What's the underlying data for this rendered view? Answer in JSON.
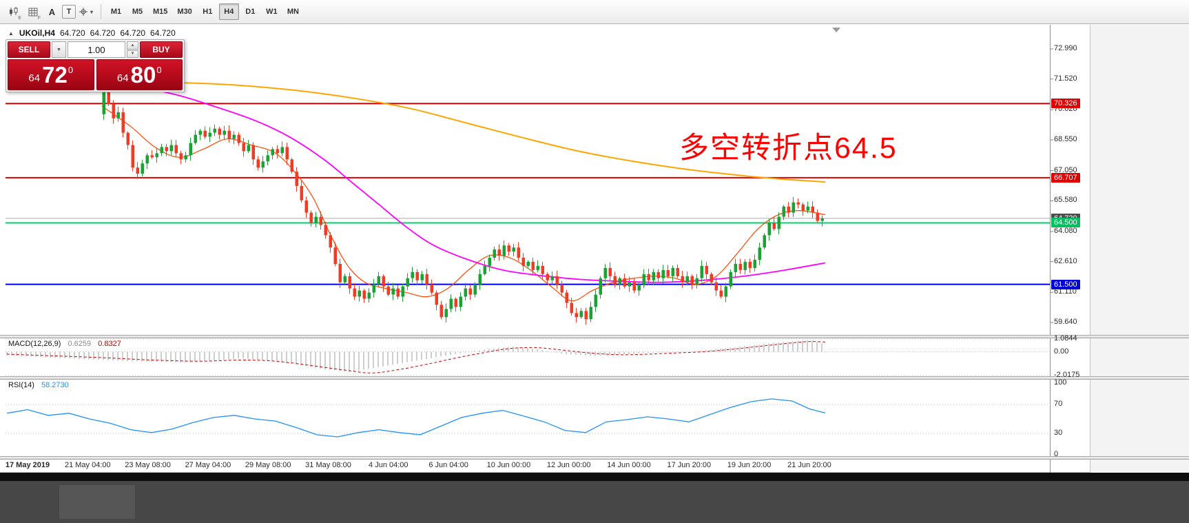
{
  "icons": {
    "caret_down": "▼",
    "caret_up": "▲",
    "caret_down_small": "▾",
    "collapse": "▲"
  },
  "toolbar": {
    "tools": [
      {
        "name": "chart-edit",
        "sub": "E"
      },
      {
        "name": "chart-grid",
        "sub": "F"
      },
      {
        "name": "text-label",
        "label": "A"
      },
      {
        "name": "text-box",
        "label": "T"
      },
      {
        "name": "crosshair",
        "sub": ""
      }
    ],
    "timeframes": [
      {
        "label": "M1"
      },
      {
        "label": "M5"
      },
      {
        "label": "M15"
      },
      {
        "label": "M30"
      },
      {
        "label": "H1"
      },
      {
        "label": "H4",
        "active": true
      },
      {
        "label": "D1"
      },
      {
        "label": "W1"
      },
      {
        "label": "MN"
      }
    ]
  },
  "chart": {
    "symbol_period": "UKOil,H4",
    "quote_open": "64.720",
    "quote_high": "64.720",
    "quote_low": "64.720",
    "quote_close": "64.720",
    "trade_panel": {
      "sell_label": "SELL",
      "buy_label": "BUY",
      "volume": "1.00",
      "sell_price_small": "64",
      "sell_price_big": "72",
      "sell_price_sup": "0",
      "buy_price_small": "64",
      "buy_price_big": "80",
      "buy_price_sup": "0"
    },
    "annotation": {
      "text": "多空转折点64.5",
      "color": "#ff0000"
    },
    "price_axis_labels": [
      "72.990",
      "71.520",
      "70.020",
      "68.550",
      "67.050",
      "65.580",
      "64.080",
      "62.610",
      "61.110",
      "59.640"
    ],
    "time_axis_labels": [
      "17 May 2019",
      "21 May 04:00",
      "23 May 08:00",
      "27 May 04:00",
      "29 May 08:00",
      "31 May 08:00",
      "4 Jun 04:00",
      "6 Jun 04:00",
      "10 Jun 00:00",
      "12 Jun 00:00",
      "14 Jun 00:00",
      "17 Jun 20:00",
      "19 Jun 20:00",
      "21 Jun 20:00"
    ],
    "hlines": [
      {
        "price": 70.326,
        "label": "70.326",
        "color": "#e00000",
        "badge": "#e00000",
        "width": 2
      },
      {
        "price": 66.707,
        "label": "66.707",
        "color": "#e00000",
        "badge": "#e00000",
        "width": 2
      },
      {
        "price": 64.72,
        "label": "64.720",
        "color": "#a6a6a6",
        "badge": "#4d4d4d",
        "width": 1
      },
      {
        "price": 64.5,
        "label": "64.500",
        "color": "#00d26a",
        "badge": "#00bf5e",
        "width": 2
      },
      {
        "price": 61.5,
        "label": "61.500",
        "color": "#0000e8",
        "badge": "#0000d8",
        "width": 2
      }
    ]
  },
  "macd": {
    "title": "MACD(12,26,9)",
    "value_main": "0.6259",
    "value_signal": "0.8327",
    "scale_labels": [
      "1.0844",
      "0.00",
      "-2.0175"
    ]
  },
  "rsi": {
    "title": "RSI(14)",
    "value": "58.2730",
    "scale_labels": [
      "100",
      "70",
      "30",
      "0"
    ]
  },
  "chart_data": [
    {
      "type": "candlestick",
      "title": "UKOil,H4",
      "ylim": [
        59.64,
        72.99
      ],
      "up_color": "#1aa333",
      "down_color": "#f23b23",
      "first_open": 69.8,
      "closes": [
        71.2,
        70.3,
        69.6,
        69.9,
        68.9,
        68.3,
        67.2,
        66.9,
        67.4,
        67.8,
        67.7,
        67.9,
        68.2,
        68.0,
        68.3,
        67.9,
        67.6,
        67.8,
        68.4,
        68.8,
        69.0,
        68.7,
        68.9,
        69.1,
        68.8,
        69.0,
        68.6,
        68.8,
        68.4,
        68.0,
        68.3,
        67.6,
        67.2,
        67.5,
        67.8,
        68.1,
        67.9,
        68.2,
        67.6,
        67.0,
        66.3,
        65.6,
        65.0,
        64.5,
        64.8,
        64.4,
        63.9,
        63.3,
        62.5,
        61.6,
        61.9,
        61.3,
        60.9,
        61.2,
        60.8,
        61.1,
        61.5,
        61.9,
        61.4,
        61.0,
        61.3,
        60.9,
        61.4,
        61.8,
        62.1,
        61.7,
        62.0,
        61.5,
        61.1,
        60.5,
        59.9,
        60.3,
        60.8,
        60.4,
        60.9,
        61.3,
        61.0,
        61.5,
        62.0,
        62.4,
        62.8,
        63.2,
        62.9,
        63.4,
        63.1,
        63.3,
        62.8,
        62.4,
        62.6,
        62.2,
        62.4,
        62.0,
        61.7,
        61.9,
        61.5,
        61.1,
        60.6,
        60.1,
        59.9,
        60.2,
        59.8,
        60.4,
        61.0,
        61.8,
        62.3,
        61.9,
        61.5,
        61.8,
        61.4,
        61.6,
        61.2,
        61.5,
        62.0,
        61.7,
        62.1,
        61.8,
        62.2,
        61.9,
        62.3,
        61.9,
        61.6,
        61.9,
        61.5,
        61.8,
        62.4,
        62.0,
        61.6,
        61.2,
        60.9,
        61.4,
        62.1,
        62.5,
        62.2,
        62.6,
        62.3,
        62.7,
        63.3,
        63.9,
        64.5,
        64.2,
        64.8,
        65.3,
        65.0,
        65.5,
        65.4,
        65.1,
        65.3,
        65.0,
        64.6,
        64.72
      ],
      "overlays": [
        {
          "name": "ma-fast",
          "color": "#ff4500",
          "width": 1.2,
          "points": [
            [
              148,
              70.2
            ],
            [
              190,
              69.2
            ],
            [
              225,
              68.2
            ],
            [
              260,
              67.7
            ],
            [
              295,
              68.1
            ],
            [
              330,
              68.6
            ],
            [
              365,
              68.3
            ],
            [
              400,
              67.9
            ],
            [
              430,
              66.9
            ],
            [
              455,
              65.7
            ],
            [
              480,
              63.9
            ],
            [
              505,
              62.4
            ],
            [
              530,
              61.6
            ],
            [
              560,
              61.3
            ],
            [
              590,
              61.1
            ],
            [
              620,
              60.9
            ],
            [
              650,
              61.3
            ],
            [
              680,
              62.2
            ],
            [
              710,
              62.9
            ],
            [
              740,
              62.8
            ],
            [
              770,
              62.2
            ],
            [
              800,
              61.4
            ],
            [
              830,
              60.7
            ],
            [
              860,
              61.2
            ],
            [
              890,
              61.6
            ],
            [
              920,
              61.8
            ],
            [
              950,
              61.9
            ],
            [
              980,
              61.8
            ],
            [
              1010,
              61.5
            ],
            [
              1040,
              61.9
            ],
            [
              1070,
              63.0
            ],
            [
              1100,
              64.2
            ],
            [
              1130,
              64.9
            ],
            [
              1160,
              65.1
            ],
            [
              1198,
              64.9
            ]
          ]
        },
        {
          "name": "ma-mid",
          "color": "#ff00ff",
          "width": 1.8,
          "points": [
            [
              8,
              71.1
            ],
            [
              100,
              71.3
            ],
            [
              180,
              71.2
            ],
            [
              250,
              70.8
            ],
            [
              310,
              70.2
            ],
            [
              370,
              69.5
            ],
            [
              420,
              68.7
            ],
            [
              470,
              67.6
            ],
            [
              510,
              66.5
            ],
            [
              550,
              65.4
            ],
            [
              590,
              64.3
            ],
            [
              630,
              63.4
            ],
            [
              680,
              62.7
            ],
            [
              730,
              62.2
            ],
            [
              780,
              61.95
            ],
            [
              840,
              61.75
            ],
            [
              900,
              61.65
            ],
            [
              960,
              61.6
            ],
            [
              1020,
              61.7
            ],
            [
              1080,
              61.9
            ],
            [
              1140,
              62.2
            ],
            [
              1198,
              62.55
            ]
          ]
        },
        {
          "name": "ma-slow",
          "color": "#ffa500",
          "width": 2,
          "points": [
            [
              8,
              71.15
            ],
            [
              150,
              71.35
            ],
            [
              300,
              71.3
            ],
            [
              420,
              71.0
            ],
            [
              520,
              70.55
            ],
            [
              600,
              70.05
            ],
            [
              680,
              69.35
            ],
            [
              760,
              68.65
            ],
            [
              840,
              68.0
            ],
            [
              920,
              67.5
            ],
            [
              1000,
              67.1
            ],
            [
              1080,
              66.8
            ],
            [
              1150,
              66.6
            ],
            [
              1198,
              66.5
            ]
          ]
        }
      ]
    },
    {
      "type": "macd",
      "title": "MACD(12,26,9)",
      "main_value": 0.6259,
      "signal_value": 0.8327,
      "ylim": [
        -2.0175,
        1.0844
      ],
      "histogram": [
        [
          10,
          -0.3
        ],
        [
          60,
          -0.45
        ],
        [
          110,
          -0.6
        ],
        [
          150,
          -0.7
        ],
        [
          190,
          -0.8
        ],
        [
          230,
          -0.85
        ],
        [
          270,
          -0.9
        ],
        [
          310,
          -0.75
        ],
        [
          350,
          -0.55
        ],
        [
          390,
          -0.75
        ],
        [
          430,
          -1.1
        ],
        [
          470,
          -1.5
        ],
        [
          510,
          -1.7
        ],
        [
          550,
          -1.3
        ],
        [
          590,
          -0.9
        ],
        [
          630,
          -0.5
        ],
        [
          670,
          -0.1
        ],
        [
          710,
          0.25
        ],
        [
          745,
          0.45
        ],
        [
          780,
          0.2
        ],
        [
          820,
          -0.2
        ],
        [
          860,
          -0.35
        ],
        [
          900,
          -0.25
        ],
        [
          940,
          -0.1
        ],
        [
          980,
          -0.05
        ],
        [
          1020,
          0.1
        ],
        [
          1060,
          0.35
        ],
        [
          1100,
          0.6
        ],
        [
          1140,
          0.85
        ],
        [
          1175,
          1.0
        ],
        [
          1198,
          0.63
        ]
      ],
      "signal_line": [
        [
          10,
          -0.2
        ],
        [
          80,
          -0.35
        ],
        [
          150,
          -0.5
        ],
        [
          220,
          -0.7
        ],
        [
          290,
          -0.8
        ],
        [
          350,
          -0.7
        ],
        [
          400,
          -0.8
        ],
        [
          450,
          -1.15
        ],
        [
          500,
          -1.55
        ],
        [
          540,
          -1.8
        ],
        [
          580,
          -1.5
        ],
        [
          620,
          -1.05
        ],
        [
          660,
          -0.55
        ],
        [
          700,
          -0.1
        ],
        [
          740,
          0.28
        ],
        [
          780,
          0.35
        ],
        [
          820,
          0.12
        ],
        [
          860,
          -0.12
        ],
        [
          900,
          -0.25
        ],
        [
          940,
          -0.2
        ],
        [
          980,
          -0.1
        ],
        [
          1020,
          0.0
        ],
        [
          1060,
          0.2
        ],
        [
          1100,
          0.45
        ],
        [
          1140,
          0.7
        ],
        [
          1175,
          0.87
        ],
        [
          1198,
          0.83
        ]
      ]
    },
    {
      "type": "rsi",
      "title": "RSI(14)",
      "value": 58.273,
      "ylim": [
        0,
        100
      ],
      "levels": [
        70,
        30
      ],
      "line": [
        [
          10,
          58
        ],
        [
          40,
          63
        ],
        [
          70,
          55
        ],
        [
          100,
          58
        ],
        [
          130,
          50
        ],
        [
          160,
          44
        ],
        [
          190,
          35
        ],
        [
          220,
          31
        ],
        [
          250,
          36
        ],
        [
          280,
          45
        ],
        [
          310,
          52
        ],
        [
          340,
          55
        ],
        [
          370,
          50
        ],
        [
          400,
          47
        ],
        [
          430,
          38
        ],
        [
          460,
          28
        ],
        [
          490,
          25
        ],
        [
          520,
          31
        ],
        [
          550,
          35
        ],
        [
          580,
          31
        ],
        [
          610,
          28
        ],
        [
          640,
          40
        ],
        [
          670,
          52
        ],
        [
          700,
          58
        ],
        [
          730,
          62
        ],
        [
          760,
          54
        ],
        [
          790,
          46
        ],
        [
          820,
          34
        ],
        [
          850,
          31
        ],
        [
          880,
          46
        ],
        [
          910,
          49
        ],
        [
          940,
          53
        ],
        [
          970,
          50
        ],
        [
          1000,
          46
        ],
        [
          1030,
          56
        ],
        [
          1060,
          66
        ],
        [
          1090,
          74
        ],
        [
          1120,
          78
        ],
        [
          1150,
          75
        ],
        [
          1175,
          64
        ],
        [
          1198,
          58.27
        ]
      ]
    }
  ]
}
